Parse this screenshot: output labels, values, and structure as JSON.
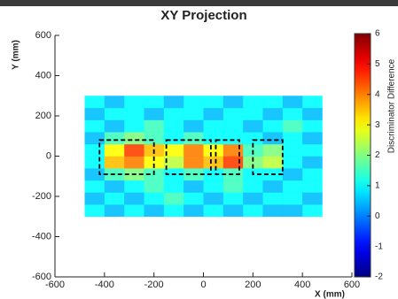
{
  "chart_data": {
    "type": "heatmap",
    "title": "XY Projection",
    "x_label": "X (mm)",
    "y_label": "Y (mm)",
    "colorbar_label": "Discriminator Difference",
    "xlim": [
      -600,
      600
    ],
    "xticks": [
      -600,
      -400,
      -200,
      0,
      200,
      400,
      600
    ],
    "ylim": [
      -600,
      600
    ],
    "yticks": [
      -600,
      -400,
      -200,
      0,
      200,
      400,
      600
    ],
    "zlim": [
      -2,
      6
    ],
    "zticks": [
      -2,
      -1,
      0,
      1,
      2,
      3,
      4,
      5,
      6
    ],
    "colormap": "jet",
    "x_edges": [
      -480,
      -400,
      -320,
      -240,
      -160,
      -80,
      0,
      80,
      160,
      240,
      320,
      400,
      480
    ],
    "y_edges": [
      -300,
      -240,
      -180,
      -120,
      -60,
      0,
      60,
      120,
      180,
      240,
      300
    ],
    "z": [
      [
        1,
        0.5,
        1,
        0.5,
        1,
        0.5,
        1,
        0.5,
        1,
        0.5,
        0.5,
        1
      ],
      [
        0.5,
        1,
        0.5,
        1,
        1.5,
        1,
        0.5,
        1,
        0.5,
        1,
        1,
        0.5
      ],
      [
        1,
        0.5,
        1,
        1.5,
        1,
        0.5,
        1,
        1.5,
        1,
        0.5,
        1,
        1
      ],
      [
        0.5,
        1.5,
        2,
        1.5,
        1,
        1.5,
        1,
        1.5,
        1,
        1,
        0.5,
        1
      ],
      [
        1,
        3.5,
        4,
        3,
        2.5,
        4,
        3.5,
        4.5,
        2,
        2.5,
        1,
        0.5
      ],
      [
        1,
        3,
        4.5,
        3.5,
        3,
        4,
        3,
        4,
        1.5,
        2,
        1,
        1
      ],
      [
        0.5,
        1.5,
        2,
        1.5,
        1,
        1.5,
        1,
        1,
        1,
        0.5,
        1,
        0.5
      ],
      [
        1,
        0.5,
        1,
        1.5,
        1,
        0.5,
        1,
        1,
        0.5,
        1,
        1.5,
        1
      ],
      [
        0.5,
        1,
        1,
        0.5,
        1,
        1,
        0.5,
        1,
        1,
        0.5,
        1,
        0.5
      ],
      [
        1,
        0.5,
        1,
        1,
        0.5,
        1,
        1,
        0.5,
        1,
        1,
        0.5,
        1
      ]
    ],
    "regions": [
      {
        "x": [
          -420,
          -200
        ],
        "y": [
          -90,
          80
        ]
      },
      {
        "x": [
          -150,
          30
        ],
        "y": [
          -90,
          80
        ]
      },
      {
        "x": [
          50,
          145
        ],
        "y": [
          -90,
          80
        ]
      },
      {
        "x": [
          200,
          320
        ],
        "y": [
          -90,
          80
        ]
      }
    ]
  }
}
